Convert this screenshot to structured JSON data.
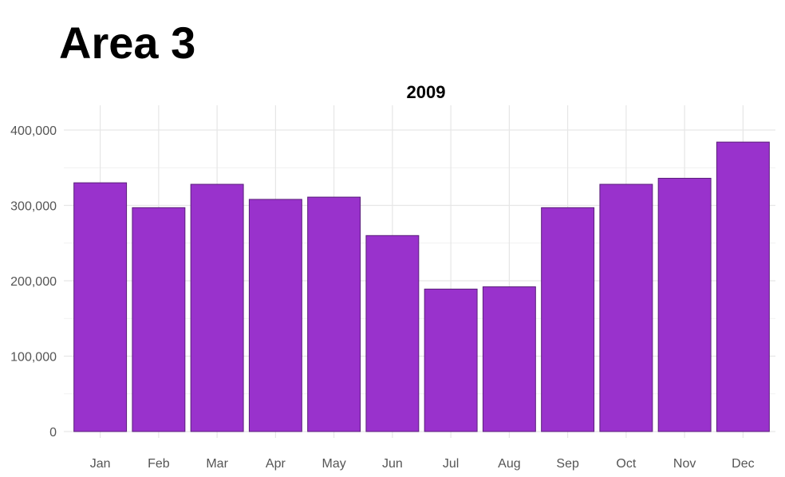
{
  "header": {
    "title": "Area 3"
  },
  "chart_data": {
    "type": "bar",
    "title": "2009",
    "categories": [
      "Jan",
      "Feb",
      "Mar",
      "Apr",
      "May",
      "Jun",
      "Jul",
      "Aug",
      "Sep",
      "Oct",
      "Nov",
      "Dec"
    ],
    "values": [
      330000,
      297000,
      328000,
      308000,
      311000,
      260000,
      189000,
      192000,
      297000,
      328000,
      336000,
      384000
    ],
    "ylim": [
      0,
      400000
    ],
    "yticks": [
      0,
      100000,
      200000,
      300000,
      400000
    ],
    "ytick_labels": [
      "0",
      "100,000",
      "200,000",
      "300,000",
      "400,000"
    ],
    "xlabel": "",
    "ylabel": "",
    "grid": true,
    "bar_color": "#9932CC"
  }
}
